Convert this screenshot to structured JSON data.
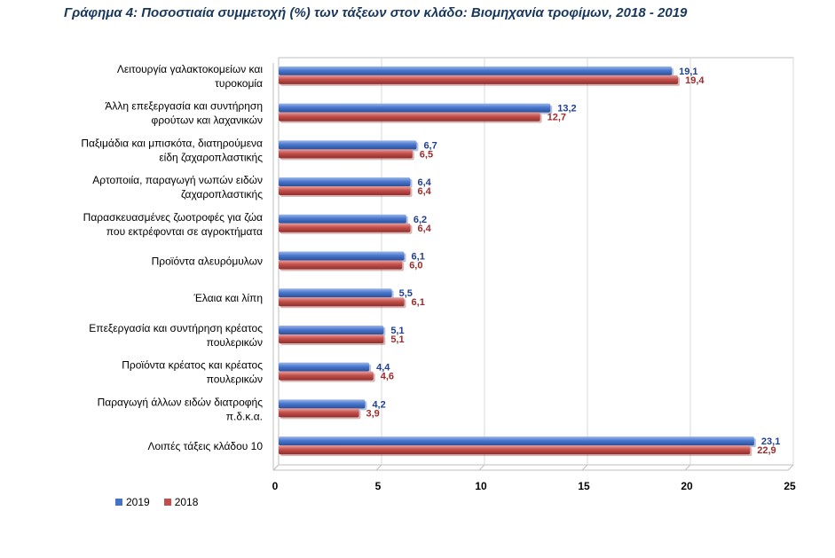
{
  "title": "Γράφημα 4: Ποσοστιαία συμμετοχή (%) των τάξεων στον κλάδο: Βιομηχανία τροφίμων, 2018 - 2019",
  "chart_data": {
    "type": "bar",
    "orientation": "horizontal",
    "categories": [
      [
        "Λειτουργία γαλακτοκομείων και",
        "τυροκομία"
      ],
      [
        "Άλλη επεξεργασία και συντήρηση",
        "φρούτων και λαχανικών"
      ],
      [
        "Παξιμάδια και μπισκότα, διατηρούμενα",
        "είδη ζαχαροπλαστικής"
      ],
      [
        "Αρτοποιία, παραγωγή νωπών ειδών",
        "ζαχαροπλαστικής"
      ],
      [
        "Παρασκευασμένες ζωοτροφές για ζώα",
        "που εκτρέφονται σε αγροκτήματα"
      ],
      [
        "Προϊόντα αλευρόμυλων"
      ],
      [
        "Έλαια και λίπη"
      ],
      [
        "Επεξεργασία και συντήρηση κρέατος",
        "πουλερικών"
      ],
      [
        "Προϊόντα κρέατος και κρέατος",
        "πουλερικών"
      ],
      [
        "Παραγωγή άλλων ειδών διατροφής",
        "π.δ.κ.α."
      ],
      [
        "Λοιπές τάξεις κλάδου 10"
      ]
    ],
    "series": [
      {
        "name": "2019",
        "color": "#4472c4",
        "values": [
          19.1,
          13.2,
          6.7,
          6.4,
          6.2,
          6.1,
          5.5,
          5.1,
          4.4,
          4.2,
          23.1
        ],
        "labels": [
          "19,1",
          "13,2",
          "6,7",
          "6,4",
          "6,2",
          "6,1",
          "5,5",
          "5,1",
          "4,4",
          "4,2",
          "23,1"
        ]
      },
      {
        "name": "2018",
        "color": "#c0504d",
        "values": [
          19.4,
          12.7,
          6.5,
          6.4,
          6.4,
          6.0,
          6.1,
          5.1,
          4.6,
          3.9,
          22.9
        ],
        "labels": [
          "19,4",
          "12,7",
          "6,5",
          "6,4",
          "6,4",
          "6,0",
          "6,1",
          "5,1",
          "4,6",
          "3,9",
          "22,9"
        ]
      }
    ],
    "xlim": [
      0,
      25
    ],
    "xticks": [
      "0",
      "5",
      "10",
      "15",
      "20",
      "25"
    ],
    "grid": true,
    "legend_position": "bottom-left"
  },
  "legend": [
    {
      "label": "2019",
      "color": "#4472c4"
    },
    {
      "label": "2018",
      "color": "#c0504d"
    }
  ]
}
